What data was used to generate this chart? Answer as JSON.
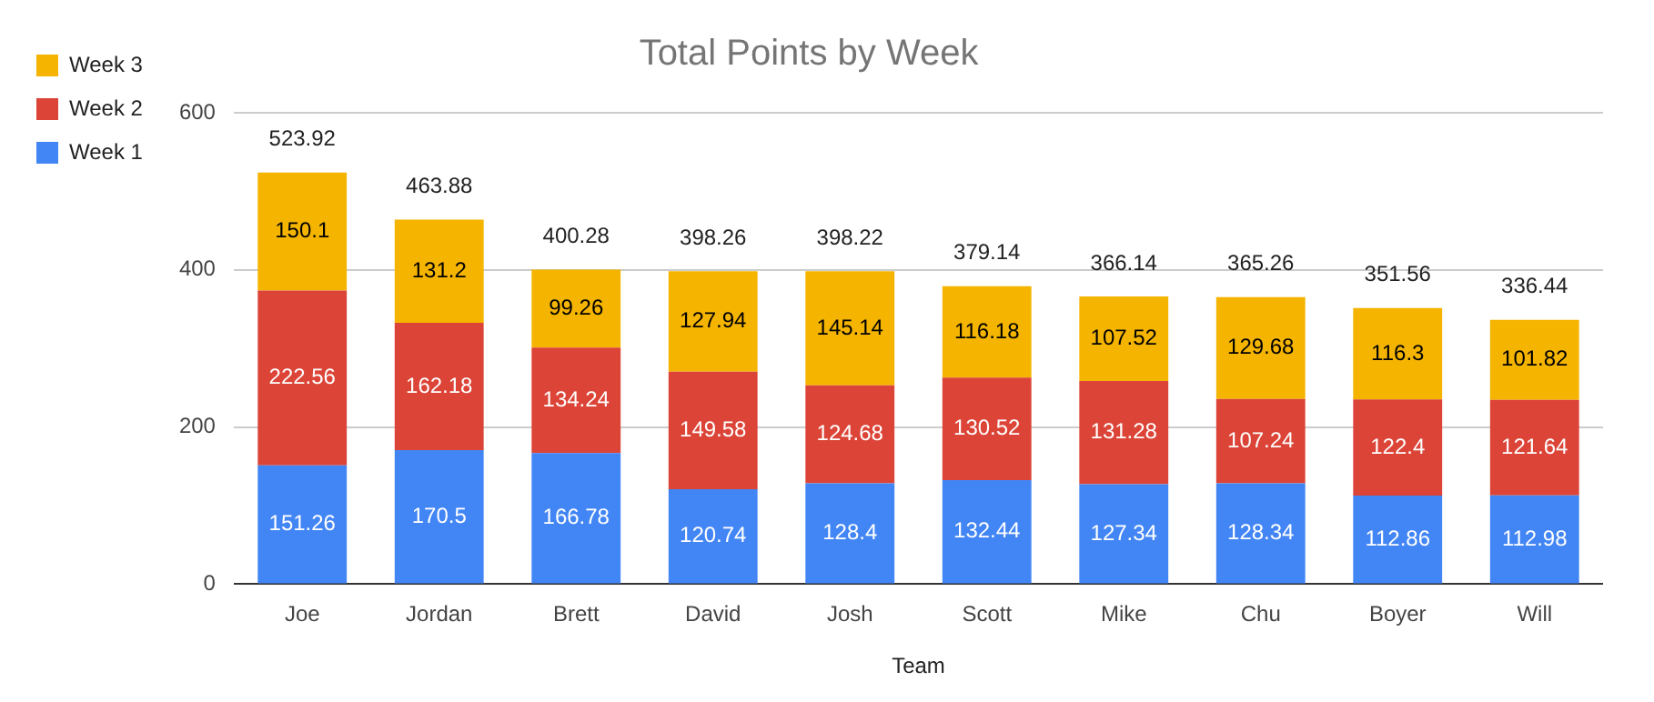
{
  "chart_data": {
    "type": "bar",
    "title": "Total Points by Week",
    "xlabel": "Team",
    "stacked": true,
    "grid": "y",
    "legend": "left",
    "data_labels": true,
    "categories": [
      "Joe",
      "Jordan",
      "Brett",
      "David",
      "Josh",
      "Scott",
      "Mike",
      "Chu",
      "Boyer",
      "Will"
    ],
    "series": [
      {
        "name": "Week 1",
        "color": "#4285f4",
        "values": [
          151.26,
          170.5,
          166.78,
          120.74,
          128.4,
          132.44,
          127.34,
          128.34,
          112.86,
          112.98
        ]
      },
      {
        "name": "Week 2",
        "color": "#db4437",
        "values": [
          222.56,
          162.18,
          134.24,
          149.58,
          124.68,
          130.52,
          131.28,
          107.24,
          122.4,
          121.64
        ]
      },
      {
        "name": "Week 3",
        "color": "#f4b400",
        "values": [
          150.1,
          131.2,
          99.26,
          127.94,
          145.14,
          116.18,
          107.52,
          129.68,
          116.3,
          101.82
        ]
      }
    ],
    "totals": [
      "523.92",
      "463.88",
      "400.28",
      "398.26",
      "398.22",
      "379.14",
      "366.14",
      "365.26",
      "351.56",
      "336.44"
    ],
    "ylim": [
      0,
      600
    ],
    "yticks": [
      0,
      200,
      400,
      600
    ]
  }
}
